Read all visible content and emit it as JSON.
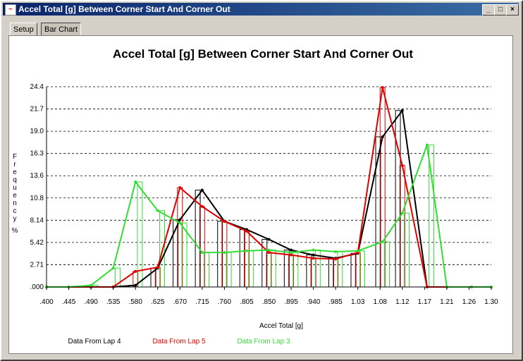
{
  "window": {
    "title": "Accel Total [g] Between Corner Start And Corner Out",
    "minimize_label": "_",
    "maximize_label": "□",
    "close_label": "×"
  },
  "tabs": [
    {
      "label": "Setup"
    },
    {
      "label": "Bar Chart"
    }
  ],
  "chart_data": {
    "type": "bar",
    "title": "Accel Total [g] Between Corner Start And Corner Out",
    "xlabel": "Accel Total [g]",
    "ylabel": "Frequency %",
    "x_ticks": [
      ".400",
      ".445",
      ".490",
      ".535",
      ".580",
      ".625",
      ".670",
      ".715",
      ".760",
      ".805",
      ".850",
      ".895",
      ".940",
      ".985",
      "1.03",
      "1.08",
      "1.12",
      "1.17",
      "1.21",
      "1.26",
      "1.30"
    ],
    "y_ticks": [
      ".000",
      "2.71",
      "5.42",
      "8.14",
      "10.8",
      "13.6",
      "16.3",
      "19.0",
      "21.7",
      "24.4"
    ],
    "xlim": [
      0.4,
      1.3
    ],
    "ylim": [
      0,
      24.4
    ],
    "grid": "horizontal-dashed",
    "legend": "bottom",
    "series": [
      {
        "name": "Data From Lap 4",
        "color": "#000000",
        "x": [
          0.4,
          0.445,
          0.49,
          0.535,
          0.58,
          0.625,
          0.67,
          0.715,
          0.76,
          0.805,
          0.85,
          0.895,
          0.94,
          0.985,
          1.03,
          1.08,
          1.12,
          1.17,
          1.21,
          1.26,
          1.3
        ],
        "values": [
          0,
          0,
          0,
          0,
          0.2,
          2.3,
          8.2,
          11.8,
          8.0,
          7.0,
          5.8,
          4.5,
          3.9,
          3.5,
          4.1,
          18.3,
          21.5,
          0,
          0,
          0,
          0
        ]
      },
      {
        "name": "Data From Lap 5",
        "color": "#e00000",
        "x": [
          0.4,
          0.445,
          0.49,
          0.535,
          0.58,
          0.625,
          0.67,
          0.715,
          0.76,
          0.805,
          0.85,
          0.895,
          0.94,
          0.985,
          1.03,
          1.08,
          1.12,
          1.17,
          1.21,
          1.26,
          1.3
        ],
        "values": [
          0,
          0,
          0,
          0,
          1.9,
          2.4,
          12.1,
          9.8,
          8.0,
          6.8,
          4.2,
          3.9,
          3.5,
          3.4,
          4.2,
          24.3,
          14.8,
          0,
          0,
          0,
          0
        ]
      },
      {
        "name": "Data From Lap 3",
        "color": "#33dd33",
        "x": [
          0.4,
          0.445,
          0.49,
          0.535,
          0.58,
          0.625,
          0.67,
          0.715,
          0.76,
          0.805,
          0.85,
          0.895,
          0.94,
          0.985,
          1.03,
          1.08,
          1.12,
          1.17,
          1.21,
          1.26,
          1.3
        ],
        "values": [
          0,
          0,
          0.2,
          2.3,
          12.8,
          9.3,
          7.8,
          4.2,
          4.2,
          4.4,
          4.5,
          4.2,
          4.5,
          4.3,
          4.4,
          5.5,
          9.0,
          17.3,
          0,
          0,
          0
        ]
      }
    ]
  }
}
